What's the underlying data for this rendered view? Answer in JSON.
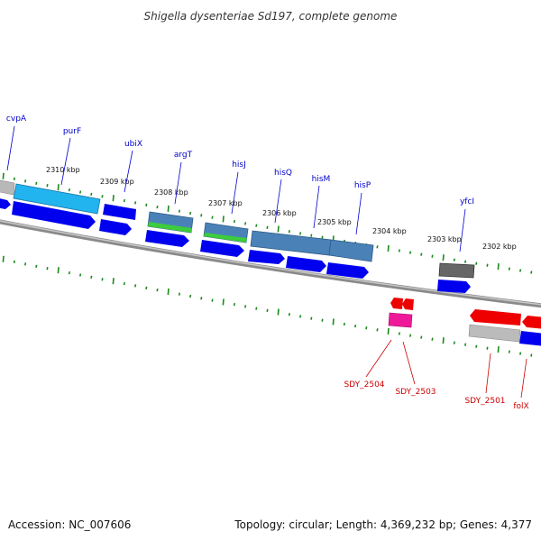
{
  "title": "Shigella dysenteriae Sd197, complete genome",
  "accession": "Accession: NC_007606",
  "topology": "Topology: circular; Length: 4,369,232 bp; Genes: 4,377",
  "ticks": [
    "2310 kbp",
    "2309 kbp",
    "2308 kbp",
    "2307 kbp",
    "2306 kbp",
    "2305 kbp",
    "2304 kbp",
    "2303 kbp",
    "2302 kbp"
  ],
  "top_genes": [
    "cvpA",
    "purF",
    "ubiX",
    "argT",
    "hisJ",
    "hisQ",
    "hisM",
    "hisP",
    "yfcI"
  ],
  "bottom_genes": [
    "SDY_2504",
    "SDY_2503",
    "SDY_2501",
    "folX"
  ],
  "colors": {
    "backbone": "#8a8a8a",
    "tick": "#1a8a1a",
    "cds_forward": "#0000ee",
    "cds_reverse": "#ee0000",
    "gene_cyan": "#22b4ee",
    "gene_steel": "#4a82b8",
    "gene_green": "#3ccc3c",
    "gene_gray": "#666666",
    "gene_silver": "#bbbbbb",
    "gene_pink": "#ee1a9a"
  }
}
